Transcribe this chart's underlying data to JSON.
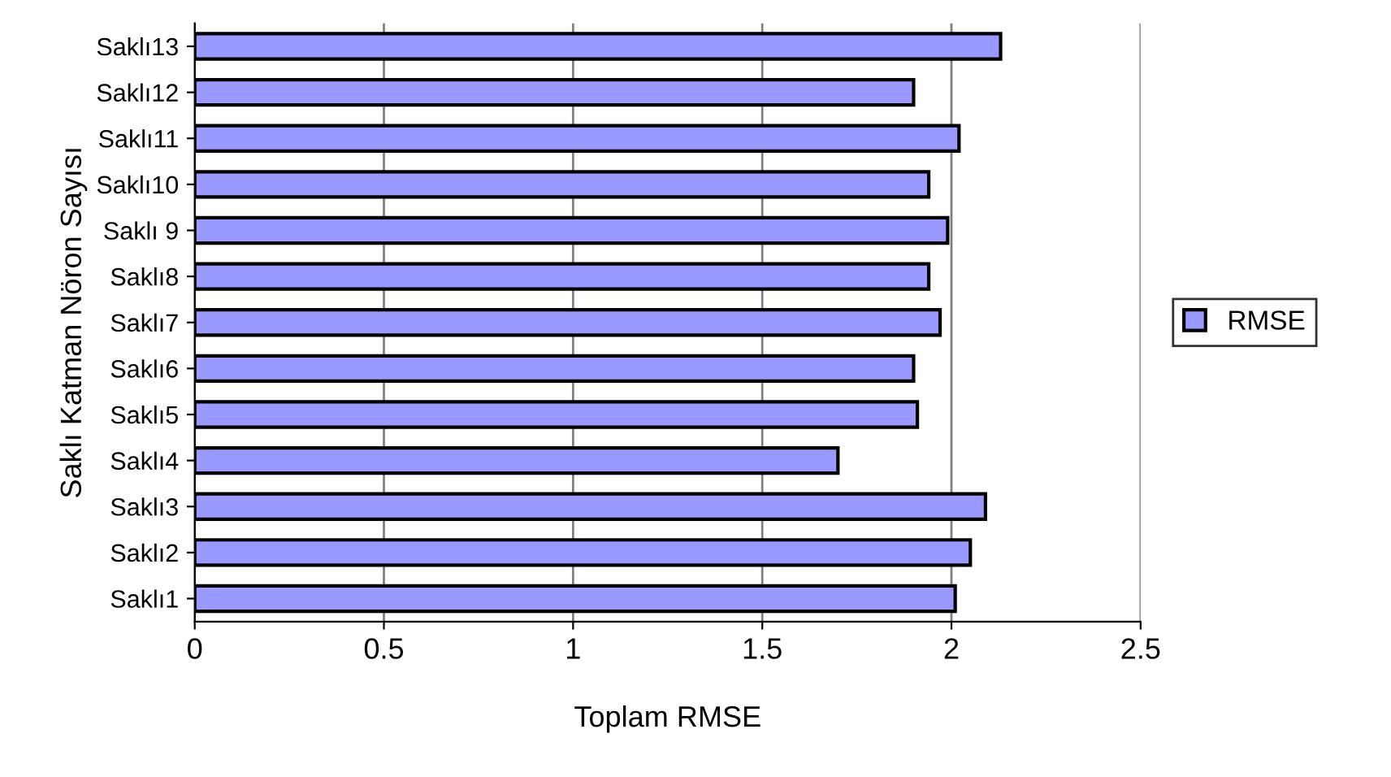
{
  "chart_data": {
    "type": "bar",
    "orientation": "horizontal",
    "xlabel": "Toplam RMSE",
    "ylabel": "Saklı Katman Nöron Sayısı",
    "categories": [
      "Saklı13",
      "Saklı12",
      "Saklı11",
      "Saklı10",
      "Saklı 9",
      "Saklı8",
      "Saklı7",
      "Saklı6",
      "Saklı5",
      "Saklı4",
      "Saklı3",
      "Saklı2",
      "Saklı1"
    ],
    "series": [
      {
        "name": "RMSE",
        "color": "#9999ff",
        "values": [
          2.13,
          1.9,
          2.02,
          1.94,
          1.99,
          1.94,
          1.97,
          1.9,
          1.91,
          1.7,
          2.09,
          2.05,
          2.01
        ]
      }
    ],
    "xlim": [
      0,
      2.5
    ],
    "xticks": [
      0,
      0.5,
      1,
      1.5,
      2,
      2.5
    ],
    "grid": "x",
    "legend": "right"
  }
}
